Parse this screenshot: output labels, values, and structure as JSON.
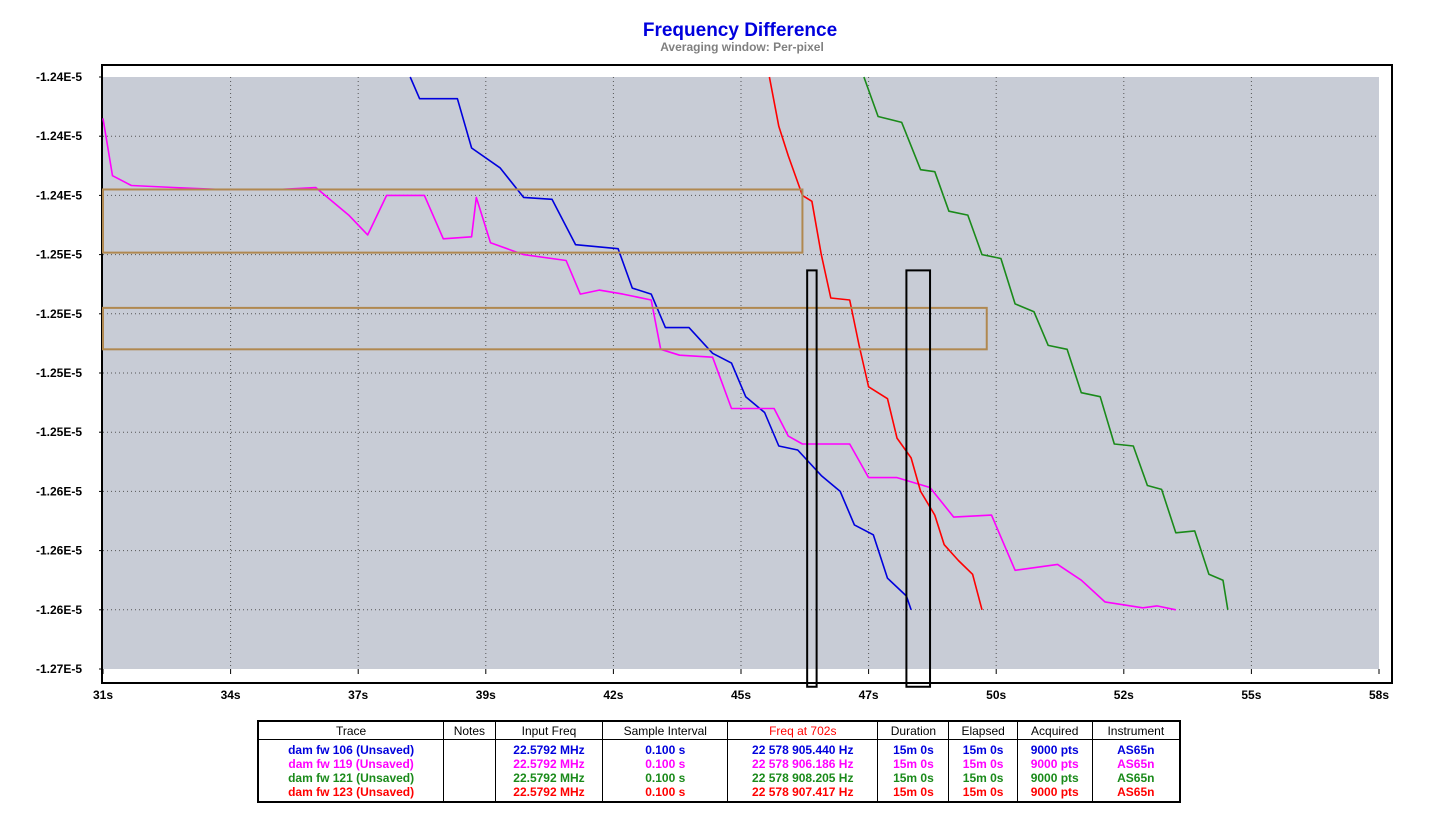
{
  "chart_data": {
    "type": "line",
    "title": "Frequency Difference",
    "subtitle": "Averaging window: Per-pixel",
    "y_tick_labels": [
      "-1.24E-5",
      "-1.24E-5",
      "-1.24E-5",
      "-1.25E-5",
      "-1.25E-5",
      "-1.25E-5",
      "-1.25E-5",
      "-1.26E-5",
      "-1.26E-5",
      "-1.26E-5",
      "-1.27E-5"
    ],
    "x_tick_labels": [
      "31s",
      "34s",
      "37s",
      "39s",
      "42s",
      "45s",
      "47s",
      "50s",
      "52s",
      "55s",
      "58s"
    ],
    "xlim": [
      31,
      58
    ],
    "ylim": [
      -1.27e-05,
      -1.24e-05
    ],
    "grid": true,
    "series": [
      {
        "name": "dam fw 106 (Unsaved)",
        "color": "#0000dd",
        "points": [
          [
            37.5,
            -1.24e-05
          ],
          [
            37.7,
            -1.2411e-05
          ],
          [
            38.5,
            -1.2411e-05
          ],
          [
            38.8,
            -1.2436e-05
          ],
          [
            39.4,
            -1.2446e-05
          ],
          [
            39.9,
            -1.2461e-05
          ],
          [
            40.5,
            -1.2462e-05
          ],
          [
            41.0,
            -1.2485e-05
          ],
          [
            41.9,
            -1.2487e-05
          ],
          [
            42.2,
            -1.2507e-05
          ],
          [
            42.6,
            -1.251e-05
          ],
          [
            42.9,
            -1.2527e-05
          ],
          [
            43.4,
            -1.2527e-05
          ],
          [
            43.9,
            -1.254e-05
          ],
          [
            44.3,
            -1.2545e-05
          ],
          [
            44.6,
            -1.2562e-05
          ],
          [
            45.0,
            -1.257e-05
          ],
          [
            45.3,
            -1.2587e-05
          ],
          [
            45.7,
            -1.2589e-05
          ],
          [
            46.2,
            -1.2602e-05
          ],
          [
            46.6,
            -1.261e-05
          ],
          [
            46.9,
            -1.2627e-05
          ],
          [
            47.3,
            -1.2632e-05
          ],
          [
            47.6,
            -1.2654e-05
          ],
          [
            48.0,
            -1.2663e-05
          ],
          [
            48.1,
            -1.267e-05
          ]
        ]
      },
      {
        "name": "dam fw 119 (Unsaved)",
        "color": "#ff00ff",
        "points": [
          [
            31.0,
            -1.2421e-05
          ],
          [
            31.2,
            -1.245e-05
          ],
          [
            31.6,
            -1.2455e-05
          ],
          [
            32.5,
            -1.2456e-05
          ],
          [
            33.5,
            -1.2457e-05
          ],
          [
            34.7,
            -1.2457e-05
          ],
          [
            35.5,
            -1.2456e-05
          ],
          [
            36.2,
            -1.247e-05
          ],
          [
            36.6,
            -1.248e-05
          ],
          [
            37.0,
            -1.246e-05
          ],
          [
            37.8,
            -1.246e-05
          ],
          [
            38.2,
            -1.2482e-05
          ],
          [
            38.8,
            -1.2481e-05
          ],
          [
            38.9,
            -1.2461e-05
          ],
          [
            39.2,
            -1.2484e-05
          ],
          [
            39.9,
            -1.249e-05
          ],
          [
            40.8,
            -1.2493e-05
          ],
          [
            41.1,
            -1.251e-05
          ],
          [
            41.5,
            -1.2508e-05
          ],
          [
            42.0,
            -1.251e-05
          ],
          [
            42.6,
            -1.2513e-05
          ],
          [
            42.8,
            -1.2538e-05
          ],
          [
            43.2,
            -1.2541e-05
          ],
          [
            43.9,
            -1.2542e-05
          ],
          [
            44.3,
            -1.2568e-05
          ],
          [
            45.2,
            -1.2568e-05
          ],
          [
            45.5,
            -1.2582e-05
          ],
          [
            45.8,
            -1.2586e-05
          ],
          [
            46.8,
            -1.2586e-05
          ],
          [
            47.2,
            -1.2603e-05
          ],
          [
            47.8,
            -1.2603e-05
          ],
          [
            48.5,
            -1.2608e-05
          ],
          [
            49.0,
            -1.2623e-05
          ],
          [
            49.8,
            -1.2622e-05
          ],
          [
            50.3,
            -1.265e-05
          ],
          [
            51.2,
            -1.2647e-05
          ],
          [
            51.7,
            -1.2655e-05
          ],
          [
            52.2,
            -1.2666e-05
          ],
          [
            53.0,
            -1.2669e-05
          ],
          [
            53.3,
            -1.2668e-05
          ],
          [
            53.7,
            -1.267e-05
          ]
        ]
      },
      {
        "name": "dam fw 121 (Unsaved)",
        "color": "#1a8a1a",
        "points": [
          [
            47.1,
            -1.24e-05
          ],
          [
            47.4,
            -1.242e-05
          ],
          [
            47.9,
            -1.2423e-05
          ],
          [
            48.3,
            -1.2447e-05
          ],
          [
            48.6,
            -1.2448e-05
          ],
          [
            48.9,
            -1.2468e-05
          ],
          [
            49.3,
            -1.247e-05
          ],
          [
            49.6,
            -1.249e-05
          ],
          [
            50.0,
            -1.2492e-05
          ],
          [
            50.3,
            -1.2515e-05
          ],
          [
            50.7,
            -1.2519e-05
          ],
          [
            51.0,
            -1.2536e-05
          ],
          [
            51.4,
            -1.2538e-05
          ],
          [
            51.7,
            -1.256e-05
          ],
          [
            52.1,
            -1.2562e-05
          ],
          [
            52.4,
            -1.2586e-05
          ],
          [
            52.8,
            -1.2587e-05
          ],
          [
            53.1,
            -1.2607e-05
          ],
          [
            53.4,
            -1.2609e-05
          ],
          [
            53.7,
            -1.2631e-05
          ],
          [
            54.1,
            -1.263e-05
          ],
          [
            54.4,
            -1.2652e-05
          ],
          [
            54.7,
            -1.2655e-05
          ],
          [
            54.8,
            -1.267e-05
          ]
        ]
      },
      {
        "name": "dam fw 123 (Unsaved)",
        "color": "#ff0000",
        "points": [
          [
            45.1,
            -1.24e-05
          ],
          [
            45.3,
            -1.2425e-05
          ],
          [
            45.5,
            -1.244e-05
          ],
          [
            45.8,
            -1.246e-05
          ],
          [
            46.0,
            -1.2463e-05
          ],
          [
            46.2,
            -1.249e-05
          ],
          [
            46.4,
            -1.2512e-05
          ],
          [
            46.8,
            -1.2513e-05
          ],
          [
            47.0,
            -1.2536e-05
          ],
          [
            47.2,
            -1.2557e-05
          ],
          [
            47.6,
            -1.2563e-05
          ],
          [
            47.8,
            -1.2583e-05
          ],
          [
            48.1,
            -1.2593e-05
          ],
          [
            48.3,
            -1.261e-05
          ],
          [
            48.6,
            -1.2622e-05
          ],
          [
            48.8,
            -1.2637e-05
          ],
          [
            49.1,
            -1.2645e-05
          ],
          [
            49.4,
            -1.2652e-05
          ],
          [
            49.6,
            -1.267e-05
          ]
        ]
      }
    ],
    "annotations": [
      {
        "shape": "rect",
        "color": "#b08850",
        "x": [
          31.0,
          45.8
        ],
        "y": [
          -1.2457e-05,
          -1.2489e-05
        ]
      },
      {
        "shape": "rect",
        "color": "#b08850",
        "x": [
          31.0,
          49.7
        ],
        "y": [
          -1.2517e-05,
          -1.2538e-05
        ]
      },
      {
        "shape": "rect",
        "color": "#000000",
        "x": [
          45.9,
          46.1
        ],
        "y": [
          -1.2498e-05,
          -1.2709e-05
        ]
      },
      {
        "shape": "rect",
        "color": "#000000",
        "x": [
          48.0,
          48.5
        ],
        "y": [
          -1.2498e-05,
          -1.2709e-05
        ]
      }
    ]
  },
  "legend_table": {
    "headers": [
      "Trace",
      "Notes",
      "Input Freq",
      "Sample Interval",
      "Freq at 702s",
      "Duration",
      "Elapsed",
      "Acquired",
      "Instrument"
    ],
    "rows": [
      {
        "color": "#0000dd",
        "cells": [
          "dam fw 106 (Unsaved)",
          "",
          "22.5792 MHz",
          "0.100 s",
          "22 578 905.440 Hz",
          "15m 0s",
          "15m 0s",
          "9000 pts",
          "AS65n"
        ]
      },
      {
        "color": "#ff00ff",
        "cells": [
          "dam fw 119 (Unsaved)",
          "",
          "22.5792 MHz",
          "0.100 s",
          "22 578 906.186 Hz",
          "15m 0s",
          "15m 0s",
          "9000 pts",
          "AS65n"
        ]
      },
      {
        "color": "#1a8a1a",
        "cells": [
          "dam fw 121 (Unsaved)",
          "",
          "22.5792 MHz",
          "0.100 s",
          "22 578 908.205 Hz",
          "15m 0s",
          "15m 0s",
          "9000 pts",
          "AS65n"
        ]
      },
      {
        "color": "#ff0000",
        "cells": [
          "dam fw 123 (Unsaved)",
          "",
          "22.5792 MHz",
          "0.100 s",
          "22 578 907.417 Hz",
          "15m 0s",
          "15m 0s",
          "9000 pts",
          "AS65n"
        ]
      }
    ]
  },
  "colors": {
    "title": "#0000dd",
    "subtitle": "#808080",
    "plot_background": "#c8ccd6",
    "grid": "#555555"
  }
}
